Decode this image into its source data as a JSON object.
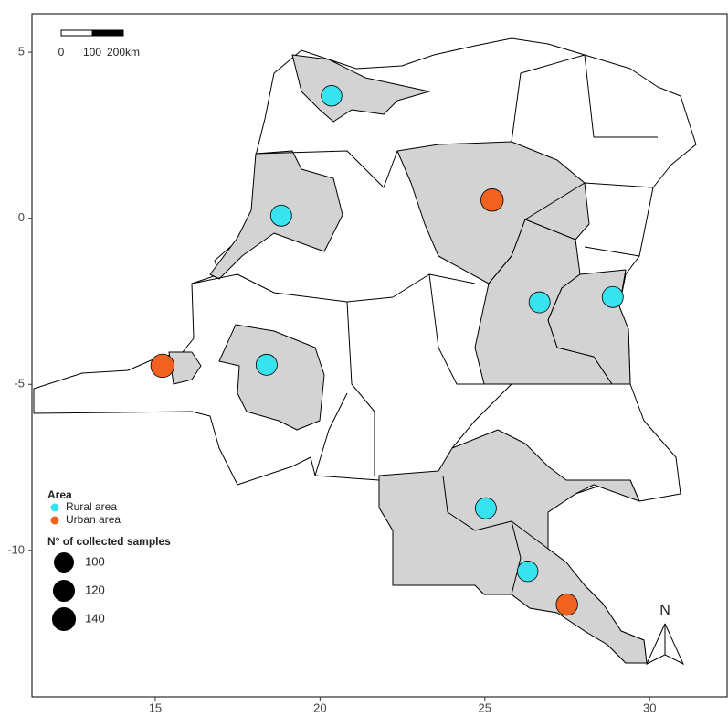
{
  "chart_data": {
    "type": "scatter",
    "xlim": [
      11.26,
      32.35
    ],
    "ylim": [
      -14.41,
      6.16
    ],
    "xticks": [
      15,
      20,
      25,
      30
    ],
    "yticks": [
      5,
      0,
      -5,
      -10
    ],
    "legend_title": "Area",
    "series": [
      {
        "name": "Rural area",
        "color": "#36e3ef",
        "x": [
          20.35,
          18.82,
          26.66,
          28.88,
          18.38,
          25.03,
          26.3
        ],
        "y": [
          3.69,
          0.08,
          -2.53,
          -2.37,
          -4.41,
          -8.73,
          -10.63
        ],
        "sizes": [
          105,
          110,
          110,
          110,
          110,
          110,
          105
        ]
      },
      {
        "name": "Urban area",
        "color": "#f2621f",
        "x": [
          25.22,
          15.22,
          27.49
        ],
        "y": [
          0.55,
          -4.44,
          -11.63
        ],
        "sizes": [
          125,
          135,
          115
        ]
      }
    ],
    "size_legend_title": "N° of collected samples",
    "size_legend": [
      100,
      120,
      140
    ],
    "scale_bar": [
      "0",
      "100",
      "200km"
    ],
    "north": "N"
  }
}
